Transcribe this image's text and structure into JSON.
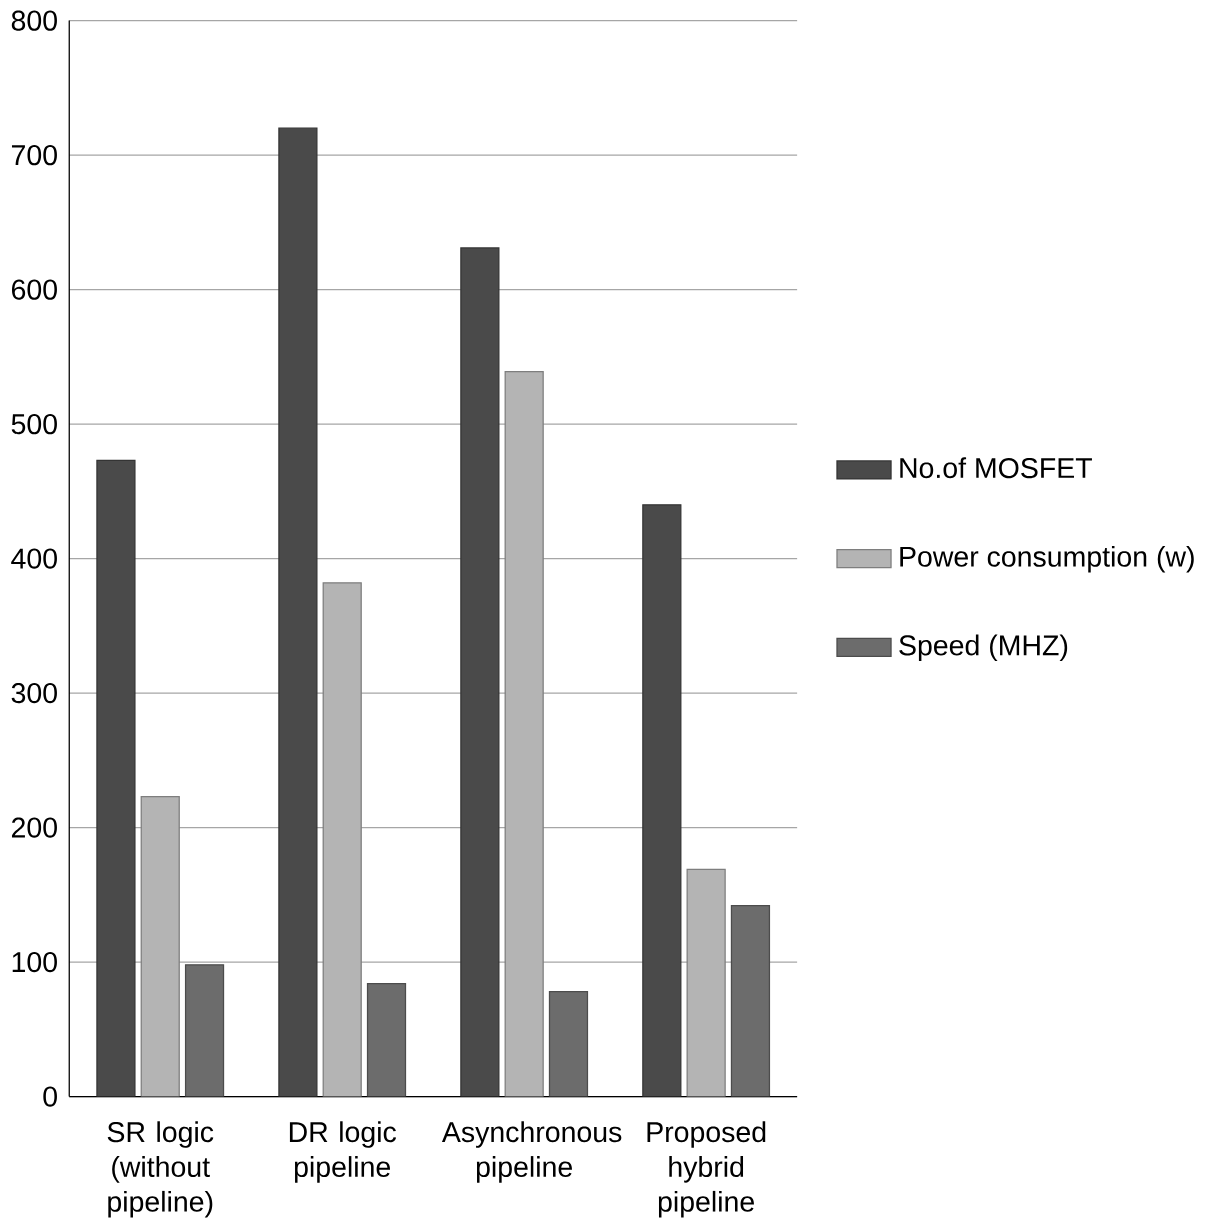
{
  "chart_data": {
    "type": "bar",
    "categories": [
      "SR logic (without pipeline)",
      "DR logic pipeline",
      "Asynchronous pipeline",
      "Proposed hybrid pipeline"
    ],
    "series": [
      {
        "name": "No.of MOSFET",
        "color": "#4a4a4a",
        "values": [
          473,
          720,
          631,
          440
        ]
      },
      {
        "name": "Power consumption (w)",
        "color": "#b4b4b4",
        "values": [
          223,
          382,
          539,
          169
        ]
      },
      {
        "name": "Speed (MHZ)",
        "color": "#6c6c6c",
        "values": [
          98,
          84,
          78,
          142
        ]
      }
    ],
    "ylim": [
      0,
      800
    ],
    "yticks": [
      0,
      100,
      200,
      300,
      400,
      500,
      600,
      700,
      800
    ],
    "grid": "y",
    "legend": "right"
  }
}
